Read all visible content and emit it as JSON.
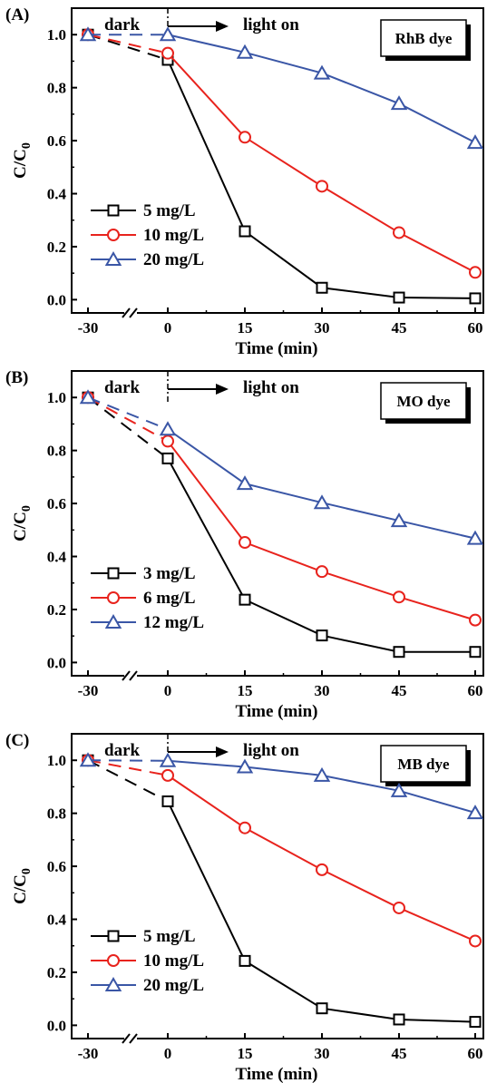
{
  "chart_data": [
    {
      "type": "line",
      "panel_label": "(A)",
      "dye_label": "RhB dye",
      "dark_label": "dark",
      "light_label": "light on",
      "xlabel": "Time (min)",
      "ylabel_main": "C/C",
      "ylabel_sub": "0",
      "x": [
        -30,
        0,
        15,
        30,
        45,
        60
      ],
      "x_tick_labels": [
        "-30",
        "0",
        "15",
        "30",
        "45",
        "60"
      ],
      "y_tick_labels": [
        "0.0",
        "0.2",
        "0.4",
        "0.6",
        "0.8",
        "1.0"
      ],
      "ylim": [
        -0.05,
        1.1
      ],
      "axis_break": true,
      "legend_position": "bottom-left",
      "series": [
        {
          "name": "5 mg/L",
          "marker": "square",
          "color": "#000000",
          "values": [
            1.0,
            0.905,
            0.258,
            0.045,
            0.008,
            0.005
          ]
        },
        {
          "name": "10 mg/L",
          "marker": "circle",
          "color": "#e8231d",
          "values": [
            1.0,
            0.93,
            0.613,
            0.428,
            0.253,
            0.103
          ]
        },
        {
          "name": "20 mg/L",
          "marker": "triangle",
          "color": "#3a56a6",
          "values": [
            1.0,
            1.0,
            0.933,
            0.855,
            0.74,
            0.593
          ]
        }
      ]
    },
    {
      "type": "line",
      "panel_label": "(B)",
      "dye_label": "MO dye",
      "dark_label": "dark",
      "light_label": "light on",
      "xlabel": "Time (min)",
      "ylabel_main": "C/C",
      "ylabel_sub": "0",
      "x": [
        -30,
        0,
        15,
        30,
        45,
        60
      ],
      "x_tick_labels": [
        "-30",
        "0",
        "15",
        "30",
        "45",
        "60"
      ],
      "y_tick_labels": [
        "0.0",
        "0.2",
        "0.4",
        "0.6",
        "0.8",
        "1.0"
      ],
      "ylim": [
        -0.05,
        1.1
      ],
      "axis_break": true,
      "legend_position": "bottom-left",
      "series": [
        {
          "name": "3 mg/L",
          "marker": "square",
          "color": "#000000",
          "values": [
            1.0,
            0.77,
            0.237,
            0.102,
            0.04,
            0.04
          ]
        },
        {
          "name": "6 mg/L",
          "marker": "circle",
          "color": "#e8231d",
          "values": [
            1.0,
            0.835,
            0.453,
            0.343,
            0.247,
            0.16
          ]
        },
        {
          "name": "12 mg/L",
          "marker": "triangle",
          "color": "#3a56a6",
          "values": [
            1.0,
            0.88,
            0.675,
            0.603,
            0.535,
            0.468
          ]
        }
      ]
    },
    {
      "type": "line",
      "panel_label": "(C)",
      "dye_label": "MB dye",
      "dark_label": "dark",
      "light_label": "light on",
      "xlabel": "Time (min)",
      "ylabel_main": "C/C",
      "ylabel_sub": "0",
      "x": [
        -30,
        0,
        15,
        30,
        45,
        60
      ],
      "x_tick_labels": [
        "-30",
        "0",
        "15",
        "30",
        "45",
        "60"
      ],
      "y_tick_labels": [
        "0.0",
        "0.2",
        "0.4",
        "0.6",
        "0.8",
        "1.0"
      ],
      "ylim": [
        -0.05,
        1.1
      ],
      "axis_break": true,
      "legend_position": "bottom-left",
      "series": [
        {
          "name": "5 mg/L",
          "marker": "square",
          "color": "#000000",
          "values": [
            1.0,
            0.845,
            0.243,
            0.064,
            0.022,
            0.013
          ]
        },
        {
          "name": "10 mg/L",
          "marker": "circle",
          "color": "#e8231d",
          "values": [
            1.0,
            0.943,
            0.745,
            0.587,
            0.443,
            0.318
          ]
        },
        {
          "name": "20 mg/L",
          "marker": "triangle",
          "color": "#3a56a6",
          "values": [
            1.0,
            0.998,
            0.975,
            0.943,
            0.885,
            0.802
          ]
        }
      ]
    }
  ]
}
